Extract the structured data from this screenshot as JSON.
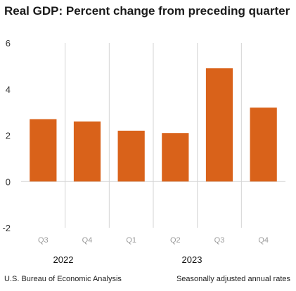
{
  "header": {
    "title": "Real GDP:  Percent change from preceding quarter"
  },
  "footer": {
    "source": "U.S. Bureau of Economic Analysis",
    "note": "Seasonally adjusted annual rates"
  },
  "years": [
    "2022",
    "2023"
  ],
  "colors": {
    "bar": "#d9621a",
    "grid": "#d4d4d4",
    "axis_text": "#333333",
    "quarter_text": "#9a9a9a"
  },
  "chart_data": {
    "type": "bar",
    "title": "Real GDP:  Percent change from preceding quarter",
    "categories": [
      "Q3",
      "Q4",
      "Q1",
      "Q2",
      "Q3",
      "Q4"
    ],
    "category_years": [
      "2022",
      "2022",
      "2023",
      "2023",
      "2023",
      "2023"
    ],
    "values": [
      2.7,
      2.6,
      2.2,
      2.1,
      4.9,
      3.2
    ],
    "ylim": [
      -2,
      6
    ],
    "yticks": [
      -2,
      0,
      2,
      4,
      6
    ],
    "xlabel": "",
    "ylabel": "",
    "grid": true
  }
}
